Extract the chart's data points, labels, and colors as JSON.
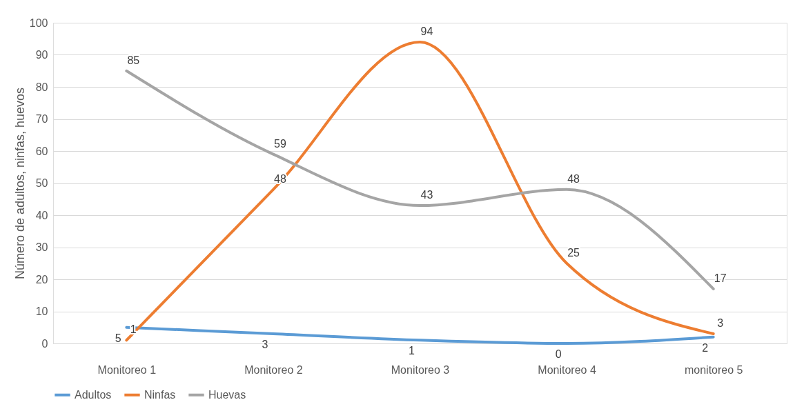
{
  "chart_data": {
    "type": "line",
    "ylabel": "Número de adultos, ninfas, huevos",
    "categories": [
      "Monitoreo 1",
      "Monitoreo 2",
      "Monitoreo 3",
      "Monitoreo 4",
      "monitoreo 5"
    ],
    "series": [
      {
        "name": "Adultos",
        "color": "#5b9bd5",
        "values": [
          5,
          3,
          1,
          0,
          2
        ]
      },
      {
        "name": "Ninfas",
        "color": "#ed7d31",
        "values": [
          1,
          48,
          94,
          25,
          3
        ]
      },
      {
        "name": "Huevas",
        "color": "#a5a5a5",
        "values": [
          85,
          59,
          43,
          48,
          17
        ]
      }
    ],
    "ylim": [
      0,
      100
    ],
    "yticks": [
      0,
      10,
      20,
      30,
      40,
      50,
      60,
      70,
      80,
      90,
      100
    ],
    "grid": "y",
    "legend": "bottom",
    "data_labels": true,
    "marker": "none",
    "line_style": "solid"
  }
}
